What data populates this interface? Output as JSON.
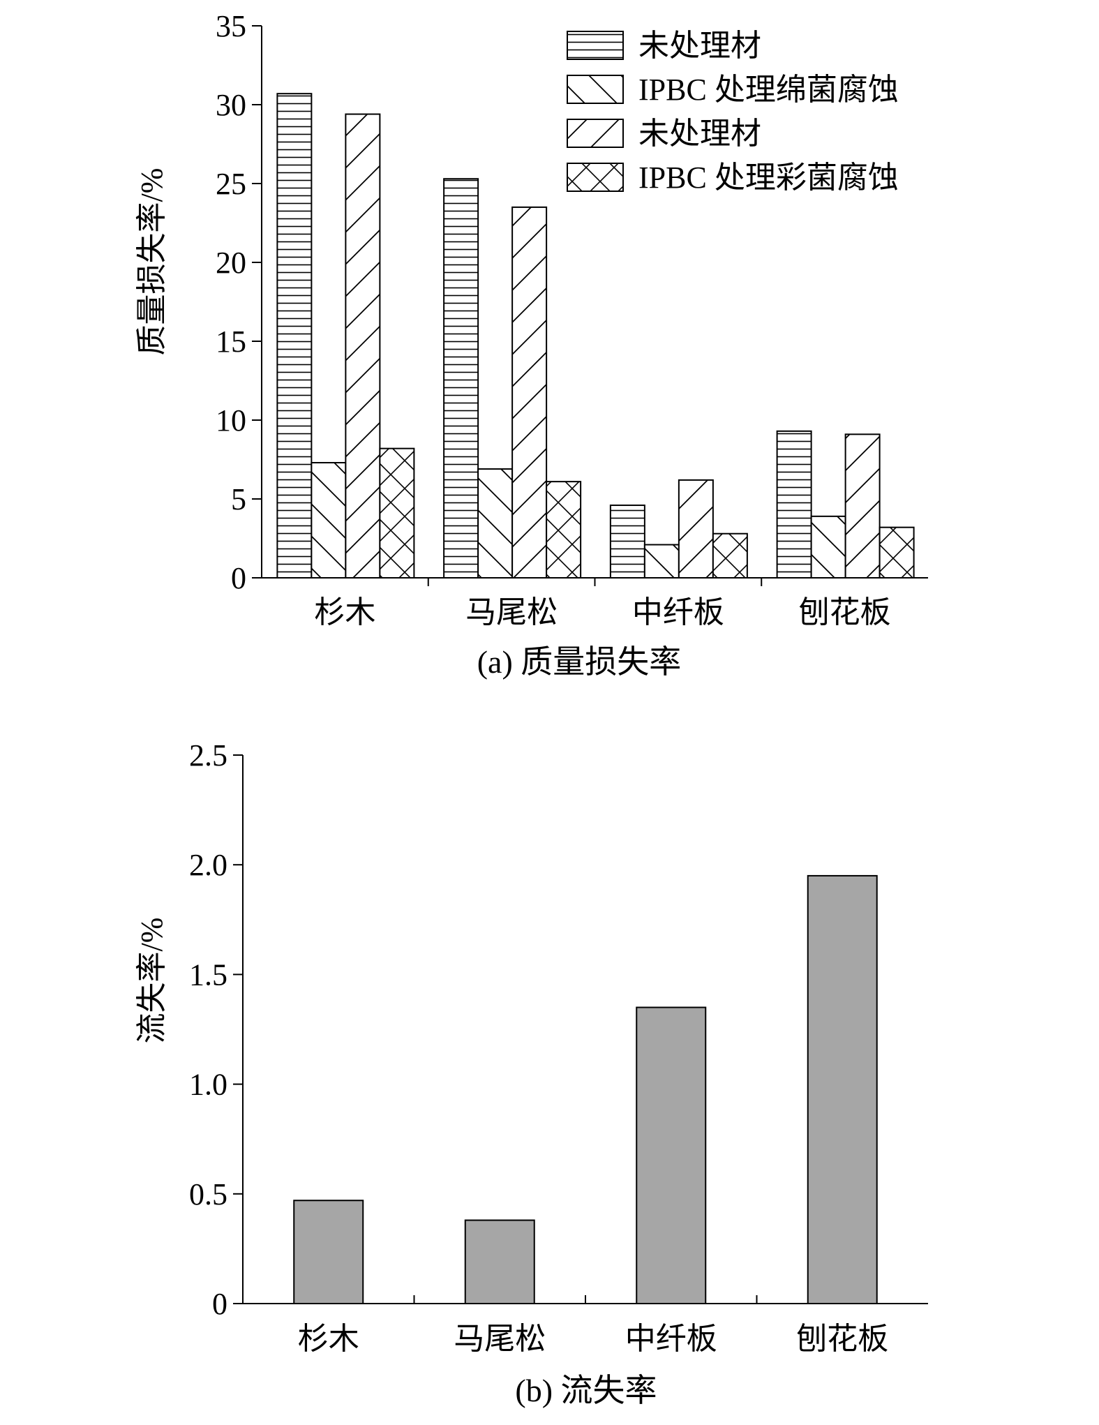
{
  "chart_data": [
    {
      "type": "bar",
      "caption": "(a) 质量损失率",
      "ylabel": "质量损失率/%",
      "ylim": [
        0,
        35
      ],
      "yticks": [
        0,
        5,
        10,
        15,
        20,
        25,
        30,
        35
      ],
      "categories": [
        "杉木",
        "马尾松",
        "中纤板",
        "刨花板"
      ],
      "legend_position": "top-right",
      "series": [
        {
          "name": "未处理材",
          "pattern": "horizontal-lines",
          "values": [
            30.7,
            25.3,
            4.6,
            9.3
          ]
        },
        {
          "name": "IPBC 处理绵菌腐蚀",
          "pattern": "back-diagonal",
          "values": [
            7.3,
            6.9,
            2.1,
            3.9
          ]
        },
        {
          "name": "未处理材",
          "pattern": "forward-diagonal",
          "values": [
            29.4,
            23.5,
            6.2,
            9.1
          ]
        },
        {
          "name": "IPBC 处理彩菌腐蚀",
          "pattern": "crosshatch",
          "values": [
            8.2,
            6.1,
            2.8,
            3.2
          ]
        }
      ]
    },
    {
      "type": "bar",
      "caption": "(b) 流失率",
      "ylabel": "流失率/%",
      "ylim": [
        0,
        2.5
      ],
      "yticks": [
        "0",
        "0.5",
        "1.0",
        "1.5",
        "2.0",
        "2.5"
      ],
      "categories": [
        "杉木",
        "马尾松",
        "中纤板",
        "刨花板"
      ],
      "bar_color": "#a6a6a6",
      "values": [
        0.47,
        0.38,
        1.35,
        1.95
      ]
    }
  ]
}
